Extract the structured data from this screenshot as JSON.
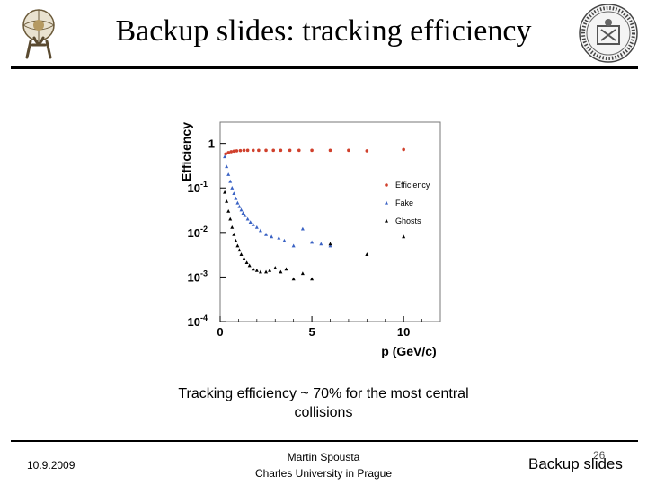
{
  "slide": {
    "title": "Backup slides: tracking efficiency",
    "caption_line1": "Tracking efficiency ~ 70% for the most central",
    "caption_line2": "collisions",
    "footer_date": "10.9.2009",
    "footer_author": "Martin Spousta",
    "footer_institution": "Charles University in Prague",
    "footer_page": "26",
    "footer_section": "Backup slides"
  },
  "chart_data": {
    "type": "scatter",
    "xlabel": "p  (GeV/c)",
    "ylabel": "Efficiency",
    "xlim": [
      0,
      12
    ],
    "ylim": [
      0.0001,
      3
    ],
    "yscale": "log",
    "x_ticks": [
      "0",
      "5",
      "10"
    ],
    "y_ticks": [
      {
        "value": 1,
        "label": "1"
      },
      {
        "value": 0.1,
        "label": "10",
        "sup": "-1"
      },
      {
        "value": 0.01,
        "label": "10",
        "sup": "-2"
      },
      {
        "value": 0.001,
        "label": "10",
        "sup": "-3"
      },
      {
        "value": 0.0001,
        "label": "10",
        "sup": "-4"
      }
    ],
    "legend_position": "right",
    "series": [
      {
        "name": "Efficiency",
        "marker": "circle",
        "color": "#d0402c",
        "points": [
          {
            "x": 0.3,
            "y": 0.58
          },
          {
            "x": 0.45,
            "y": 0.62
          },
          {
            "x": 0.6,
            "y": 0.65
          },
          {
            "x": 0.75,
            "y": 0.67
          },
          {
            "x": 0.9,
            "y": 0.68
          },
          {
            "x": 1.1,
            "y": 0.69
          },
          {
            "x": 1.3,
            "y": 0.7
          },
          {
            "x": 1.5,
            "y": 0.7
          },
          {
            "x": 1.8,
            "y": 0.7
          },
          {
            "x": 2.1,
            "y": 0.7
          },
          {
            "x": 2.5,
            "y": 0.7
          },
          {
            "x": 2.9,
            "y": 0.7
          },
          {
            "x": 3.3,
            "y": 0.7
          },
          {
            "x": 3.8,
            "y": 0.7
          },
          {
            "x": 4.3,
            "y": 0.7
          },
          {
            "x": 5.0,
            "y": 0.7
          },
          {
            "x": 6.0,
            "y": 0.7
          },
          {
            "x": 7.0,
            "y": 0.7
          },
          {
            "x": 8.0,
            "y": 0.68
          },
          {
            "x": 10.0,
            "y": 0.73
          }
        ]
      },
      {
        "name": "Fake",
        "marker": "triangle",
        "color": "#3a62c4",
        "points": [
          {
            "x": 0.25,
            "y": 0.5
          },
          {
            "x": 0.35,
            "y": 0.3
          },
          {
            "x": 0.45,
            "y": 0.2
          },
          {
            "x": 0.55,
            "y": 0.14
          },
          {
            "x": 0.65,
            "y": 0.1
          },
          {
            "x": 0.75,
            "y": 0.075
          },
          {
            "x": 0.85,
            "y": 0.058
          },
          {
            "x": 0.95,
            "y": 0.046
          },
          {
            "x": 1.05,
            "y": 0.038
          },
          {
            "x": 1.15,
            "y": 0.032
          },
          {
            "x": 1.25,
            "y": 0.027
          },
          {
            "x": 1.35,
            "y": 0.024
          },
          {
            "x": 1.5,
            "y": 0.02
          },
          {
            "x": 1.65,
            "y": 0.017
          },
          {
            "x": 1.8,
            "y": 0.015
          },
          {
            "x": 2.0,
            "y": 0.013
          },
          {
            "x": 2.2,
            "y": 0.011
          },
          {
            "x": 2.5,
            "y": 0.009
          },
          {
            "x": 2.8,
            "y": 0.008
          },
          {
            "x": 3.2,
            "y": 0.0075
          },
          {
            "x": 3.5,
            "y": 0.0065
          },
          {
            "x": 4.0,
            "y": 0.005
          },
          {
            "x": 4.5,
            "y": 0.012
          },
          {
            "x": 5.0,
            "y": 0.006
          },
          {
            "x": 5.5,
            "y": 0.0055
          },
          {
            "x": 6.0,
            "y": 0.005
          }
        ]
      },
      {
        "name": "Ghosts",
        "marker": "triangle",
        "color": "#000000",
        "points": [
          {
            "x": 0.25,
            "y": 0.08
          },
          {
            "x": 0.35,
            "y": 0.05
          },
          {
            "x": 0.45,
            "y": 0.03
          },
          {
            "x": 0.55,
            "y": 0.02
          },
          {
            "x": 0.65,
            "y": 0.013
          },
          {
            "x": 0.75,
            "y": 0.009
          },
          {
            "x": 0.85,
            "y": 0.0065
          },
          {
            "x": 0.95,
            "y": 0.005
          },
          {
            "x": 1.05,
            "y": 0.004
          },
          {
            "x": 1.15,
            "y": 0.0032
          },
          {
            "x": 1.3,
            "y": 0.0026
          },
          {
            "x": 1.45,
            "y": 0.0021
          },
          {
            "x": 1.6,
            "y": 0.0018
          },
          {
            "x": 1.8,
            "y": 0.0015
          },
          {
            "x": 2.0,
            "y": 0.0014
          },
          {
            "x": 2.2,
            "y": 0.0013
          },
          {
            "x": 2.5,
            "y": 0.0013
          },
          {
            "x": 2.7,
            "y": 0.0014
          },
          {
            "x": 3.0,
            "y": 0.0016
          },
          {
            "x": 3.3,
            "y": 0.0013
          },
          {
            "x": 3.6,
            "y": 0.0015
          },
          {
            "x": 4.0,
            "y": 0.0009
          },
          {
            "x": 4.5,
            "y": 0.0012
          },
          {
            "x": 5.0,
            "y": 0.0009
          },
          {
            "x": 6.0,
            "y": 0.0055
          },
          {
            "x": 8.0,
            "y": 0.0032
          },
          {
            "x": 10.0,
            "y": 0.008
          }
        ]
      }
    ]
  }
}
